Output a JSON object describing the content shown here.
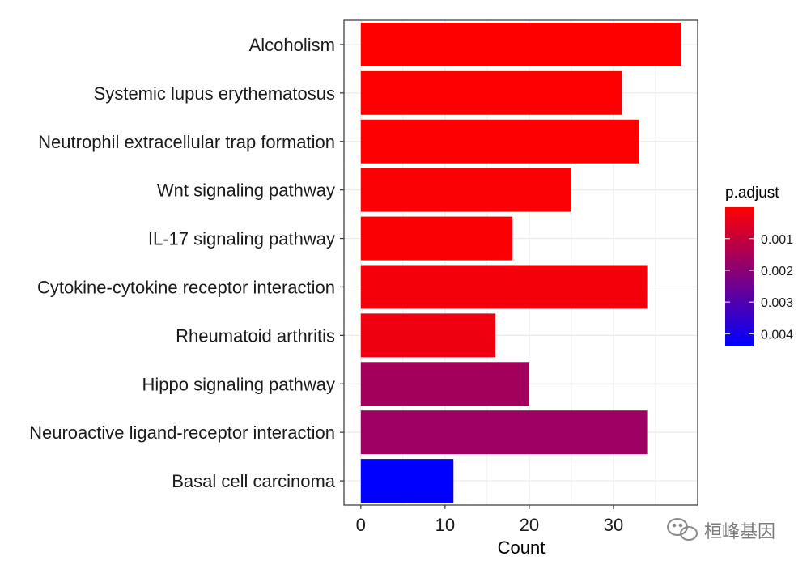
{
  "chart_data": {
    "type": "bar",
    "orientation": "horizontal",
    "categories": [
      "Alcoholism",
      "Systemic lupus erythematosus",
      "Neutrophil extracellular trap formation",
      "Wnt signaling pathway",
      "IL-17 signaling pathway",
      "Cytokine-cytokine receptor interaction",
      "Rheumatoid arthritis",
      "Hippo signaling pathway",
      "Neuroactive ligand-receptor interaction",
      "Basal cell carcinoma"
    ],
    "values": [
      38,
      31,
      33,
      25,
      18,
      34,
      16,
      20,
      34,
      11
    ],
    "p_adjust": [
      1e-05,
      3e-05,
      5e-05,
      8e-05,
      0.0001,
      0.0002,
      0.0003,
      0.0016,
      0.0017,
      0.0044
    ],
    "xlabel": "Count",
    "xlim": [
      -2,
      40
    ],
    "xticks": [
      0,
      10,
      20,
      30
    ],
    "legend": {
      "title": "p.adjust",
      "position": "right",
      "range": [
        1e-05,
        0.0044
      ],
      "ticks": [
        0.001,
        0.002,
        0.003,
        0.004
      ],
      "tick_labels": [
        "0.001",
        "0.002",
        "0.003",
        "0.004"
      ],
      "color_low_p": "#ff0000",
      "color_high_p": "#0000ff"
    }
  },
  "watermark": {
    "text": "桓峰基因",
    "icon": "wechat-icon"
  },
  "colors": {
    "grid": "#ebebeb",
    "panel_border": "#333333",
    "tick": "#333333"
  }
}
